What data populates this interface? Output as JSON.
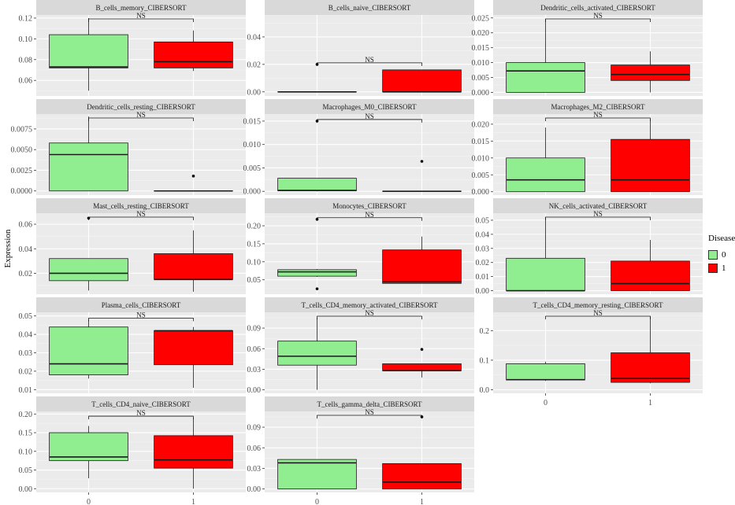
{
  "chart_data": {
    "type": "boxplot",
    "ylabel": "Expression",
    "legend": {
      "title": "Disease",
      "placement": "right",
      "entries": [
        {
          "label": "0",
          "color": "#90EE90"
        },
        {
          "label": "1",
          "color": "#FF0000"
        }
      ]
    },
    "categories": [
      "0",
      "1"
    ],
    "significance_label": "NS",
    "panels": [
      {
        "title": "B_cells_memory_CIBERSORT",
        "ylim": [
          0.045,
          0.123
        ],
        "yticks": [
          0.06,
          0.08,
          0.1,
          0.12
        ],
        "ytick_labels": [
          "0.06",
          "0.08",
          "0.10",
          "0.12"
        ],
        "groups": [
          {
            "whisker_low": 0.05,
            "q1": 0.072,
            "median": 0.073,
            "q3": 0.104,
            "whisker_high": 0.12,
            "outliers": []
          },
          {
            "whisker_low": 0.069,
            "q1": 0.072,
            "median": 0.078,
            "q3": 0.097,
            "whisker_high": 0.108,
            "outliers": []
          }
        ]
      },
      {
        "title": "B_cells_naive_CIBERSORT",
        "ylim": [
          -0.003,
          0.056
        ],
        "yticks": [
          0,
          0.02,
          0.04
        ],
        "ytick_labels": [
          "0.00",
          "0.02",
          "0.04"
        ],
        "groups": [
          {
            "whisker_low": 0,
            "q1": 0,
            "median": 0,
            "q3": 0,
            "whisker_high": 0,
            "outliers": [
              0.02
            ]
          },
          {
            "whisker_low": 0,
            "q1": 0,
            "median": 0,
            "q3": 0.016,
            "whisker_high": 0.016,
            "outliers": []
          }
        ]
      },
      {
        "title": "Dendritic_cells_activated_CIBERSORT",
        "ylim": [
          -0.0012,
          0.026
        ],
        "yticks": [
          0,
          0.005,
          0.01,
          0.015,
          0.02,
          0.025
        ],
        "ytick_labels": [
          "0.000",
          "0.005",
          "0.010",
          "0.015",
          "0.020",
          "0.025"
        ],
        "groups": [
          {
            "whisker_low": 0,
            "q1": 0,
            "median": 0.0072,
            "q3": 0.01,
            "whisker_high": 0.0245,
            "outliers": []
          },
          {
            "whisker_low": 0,
            "q1": 0.004,
            "median": 0.006,
            "q3": 0.0092,
            "whisker_high": 0.0138,
            "outliers": []
          }
        ]
      },
      {
        "title": "Dendritic_cells_resting_CIBERSORT",
        "ylim": [
          -0.0005,
          0.0093
        ],
        "yticks": [
          0,
          0.0025,
          0.005,
          0.0075
        ],
        "ytick_labels": [
          "0.0000",
          "0.0025",
          "0.0050",
          "0.0075"
        ],
        "groups": [
          {
            "whisker_low": 0,
            "q1": 0,
            "median": 0.0044,
            "q3": 0.0058,
            "whisker_high": 0.009,
            "outliers": []
          },
          {
            "whisker_low": 0,
            "q1": 0,
            "median": 0,
            "q3": 0,
            "whisker_high": 0,
            "outliers": [
              0.0018
            ]
          }
        ]
      },
      {
        "title": "Macrophages_M0_CIBERSORT",
        "ylim": [
          -0.0008,
          0.0165
        ],
        "yticks": [
          0,
          0.005,
          0.01,
          0.015
        ],
        "ytick_labels": [
          "0.000",
          "0.005",
          "0.010",
          "0.015"
        ],
        "groups": [
          {
            "whisker_low": 0,
            "q1": 0.0001,
            "median": 0.0002,
            "q3": 0.0028,
            "whisker_high": 0.0028,
            "outliers": [
              0.015
            ]
          },
          {
            "whisker_low": 0,
            "q1": 0,
            "median": 0,
            "q3": 0,
            "whisker_high": 0,
            "outliers": [
              0.0064
            ]
          }
        ]
      },
      {
        "title": "Macrophages_M2_CIBERSORT",
        "ylim": [
          -0.001,
          0.023
        ],
        "yticks": [
          0,
          0.005,
          0.01,
          0.015,
          0.02
        ],
        "ytick_labels": [
          "0.000",
          "0.005",
          "0.010",
          "0.015",
          "0.020"
        ],
        "groups": [
          {
            "whisker_low": 0,
            "q1": 0,
            "median": 0.0035,
            "q3": 0.01,
            "whisker_high": 0.019,
            "outliers": []
          },
          {
            "whisker_low": 0,
            "q1": 0,
            "median": 0.0035,
            "q3": 0.0155,
            "whisker_high": 0.0215,
            "outliers": []
          }
        ]
      },
      {
        "title": "Mast_cells_resting_CIBERSORT",
        "ylim": [
          0.003,
          0.069
        ],
        "yticks": [
          0.02,
          0.04,
          0.06
        ],
        "ytick_labels": [
          "0.02",
          "0.04",
          "0.06"
        ],
        "groups": [
          {
            "whisker_low": 0.006,
            "q1": 0.014,
            "median": 0.02,
            "q3": 0.032,
            "whisker_high": 0.032,
            "outliers": [
              0.065
            ]
          },
          {
            "whisker_low": 0.005,
            "q1": 0.015,
            "median": 0.015,
            "q3": 0.036,
            "whisker_high": 0.055,
            "outliers": []
          }
        ]
      },
      {
        "title": "Monocytes_CIBERSORT",
        "ylim": [
          0.01,
          0.235
        ],
        "yticks": [
          0.05,
          0.1,
          0.15,
          0.2
        ],
        "ytick_labels": [
          "0.05",
          "0.10",
          "0.15",
          "0.20"
        ],
        "groups": [
          {
            "whisker_low": 0.058,
            "q1": 0.06,
            "median": 0.072,
            "q3": 0.078,
            "whisker_high": 0.08,
            "outliers": [
              0.218,
              0.025
            ]
          },
          {
            "whisker_low": 0.04,
            "q1": 0.04,
            "median": 0.045,
            "q3": 0.133,
            "whisker_high": 0.17,
            "outliers": []
          }
        ]
      },
      {
        "title": "NK_cells_activated_CIBERSORT",
        "ylim": [
          -0.0025,
          0.055
        ],
        "yticks": [
          0,
          0.01,
          0.02,
          0.03,
          0.04,
          0.05
        ],
        "ytick_labels": [
          "0.00",
          "0.01",
          "0.02",
          "0.03",
          "0.04",
          "0.05"
        ],
        "groups": [
          {
            "whisker_low": 0,
            "q1": 0,
            "median": 0,
            "q3": 0.023,
            "whisker_high": 0.052,
            "outliers": []
          },
          {
            "whisker_low": 0,
            "q1": 0,
            "median": 0.005,
            "q3": 0.021,
            "whisker_high": 0.036,
            "outliers": []
          }
        ]
      },
      {
        "title": "Plasma_cells_CIBERSORT",
        "ylim": [
          0.008,
          0.052
        ],
        "yticks": [
          0.01,
          0.02,
          0.03,
          0.04,
          0.05
        ],
        "ytick_labels": [
          "0.01",
          "0.02",
          "0.03",
          "0.04",
          "0.05"
        ],
        "groups": [
          {
            "whisker_low": 0.016,
            "q1": 0.018,
            "median": 0.024,
            "q3": 0.044,
            "whisker_high": 0.048,
            "outliers": []
          },
          {
            "whisker_low": 0.011,
            "q1": 0.0235,
            "median": 0.042,
            "q3": 0.042,
            "whisker_high": 0.044,
            "outliers": []
          }
        ]
      },
      {
        "title": "T_cells_CD4_memory_activated_CIBERSORT",
        "ylim": [
          -0.005,
          0.113
        ],
        "yticks": [
          0,
          0.03,
          0.06,
          0.09
        ],
        "ytick_labels": [
          "0.00",
          "0.03",
          "0.06",
          "0.09"
        ],
        "groups": [
          {
            "whisker_low": 0,
            "q1": 0.036,
            "median": 0.049,
            "q3": 0.071,
            "whisker_high": 0.105,
            "outliers": []
          },
          {
            "whisker_low": 0.018,
            "q1": 0.028,
            "median": 0.028,
            "q3": 0.038,
            "whisker_high": 0.038,
            "outliers": [
              0.059
            ]
          }
        ]
      },
      {
        "title": "T_cells_CD4_memory_resting_CIBERSORT",
        "ylim": [
          -0.012,
          0.262
        ],
        "yticks": [
          0,
          0.1,
          0.2
        ],
        "ytick_labels": [
          "0.0",
          "0.1",
          "0.2"
        ],
        "groups": [
          {
            "whisker_low": 0.03,
            "q1": 0.033,
            "median": 0.034,
            "q3": 0.088,
            "whisker_high": 0.095,
            "outliers": []
          },
          {
            "whisker_low": 0.022,
            "q1": 0.025,
            "median": 0.038,
            "q3": 0.125,
            "whisker_high": 0.248,
            "outliers": []
          }
        ]
      },
      {
        "title": "T_cells_CD4_naive_CIBERSORT",
        "ylim": [
          -0.01,
          0.207
        ],
        "yticks": [
          0,
          0.05,
          0.1,
          0.15,
          0.2
        ],
        "ytick_labels": [
          "0.00",
          "0.05",
          "0.10",
          "0.15",
          "0.20"
        ],
        "groups": [
          {
            "whisker_low": 0.028,
            "q1": 0.075,
            "median": 0.085,
            "q3": 0.15,
            "whisker_high": 0.168,
            "outliers": []
          },
          {
            "whisker_low": 0,
            "q1": 0.055,
            "median": 0.077,
            "q3": 0.142,
            "whisker_high": 0.19,
            "outliers": []
          }
        ]
      },
      {
        "title": "T_cells_gamma_delta_CIBERSORT",
        "ylim": [
          -0.005,
          0.113
        ],
        "yticks": [
          0,
          0.03,
          0.06,
          0.09
        ],
        "ytick_labels": [
          "0.00",
          "0.03",
          "0.06",
          "0.09"
        ],
        "groups": [
          {
            "whisker_low": 0,
            "q1": 0,
            "median": 0.038,
            "q3": 0.043,
            "whisker_high": 0.043,
            "outliers": []
          },
          {
            "whisker_low": 0,
            "q1": 0,
            "median": 0.01,
            "q3": 0.037,
            "whisker_high": 0.037,
            "outliers": [
              0.105
            ]
          }
        ]
      }
    ]
  }
}
